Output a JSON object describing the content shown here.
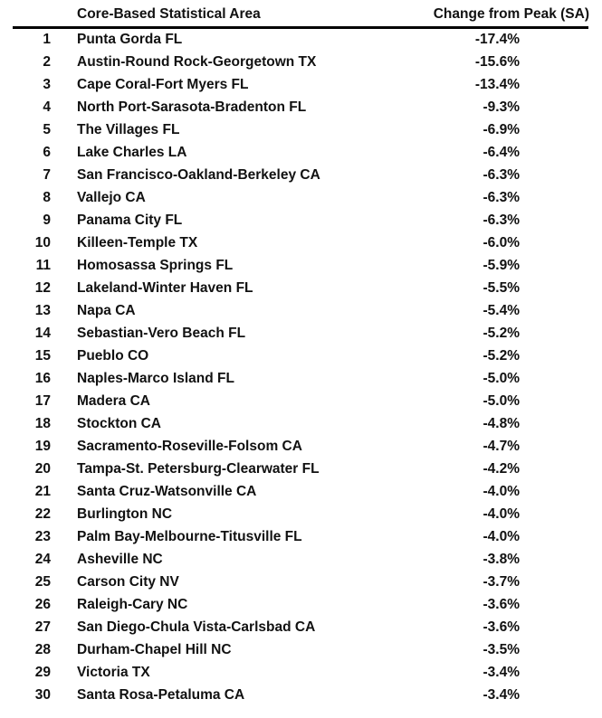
{
  "header": {
    "area": "Core-Based Statistical Area",
    "change": "Change from Peak (SA)"
  },
  "rows": [
    {
      "rank": "1",
      "name": "Punta Gorda FL",
      "change": "-17.4%"
    },
    {
      "rank": "2",
      "name": "Austin-Round Rock-Georgetown TX",
      "change": "-15.6%"
    },
    {
      "rank": "3",
      "name": "Cape Coral-Fort Myers FL",
      "change": "-13.4%"
    },
    {
      "rank": "4",
      "name": "North Port-Sarasota-Bradenton FL",
      "change": "-9.3%"
    },
    {
      "rank": "5",
      "name": "The Villages FL",
      "change": "-6.9%"
    },
    {
      "rank": "6",
      "name": "Lake Charles LA",
      "change": "-6.4%"
    },
    {
      "rank": "7",
      "name": "San Francisco-Oakland-Berkeley CA",
      "change": "-6.3%"
    },
    {
      "rank": "8",
      "name": "Vallejo CA",
      "change": "-6.3%"
    },
    {
      "rank": "9",
      "name": "Panama City FL",
      "change": "-6.3%"
    },
    {
      "rank": "10",
      "name": "Killeen-Temple TX",
      "change": "-6.0%"
    },
    {
      "rank": "11",
      "name": "Homosassa Springs FL",
      "change": "-5.9%"
    },
    {
      "rank": "12",
      "name": "Lakeland-Winter Haven FL",
      "change": "-5.5%"
    },
    {
      "rank": "13",
      "name": "Napa CA",
      "change": "-5.4%"
    },
    {
      "rank": "14",
      "name": "Sebastian-Vero Beach FL",
      "change": "-5.2%"
    },
    {
      "rank": "15",
      "name": "Pueblo CO",
      "change": "-5.2%"
    },
    {
      "rank": "16",
      "name": "Naples-Marco Island FL",
      "change": "-5.0%"
    },
    {
      "rank": "17",
      "name": "Madera CA",
      "change": "-5.0%"
    },
    {
      "rank": "18",
      "name": "Stockton CA",
      "change": "-4.8%"
    },
    {
      "rank": "19",
      "name": "Sacramento-Roseville-Folsom CA",
      "change": "-4.7%"
    },
    {
      "rank": "20",
      "name": "Tampa-St. Petersburg-Clearwater FL",
      "change": "-4.2%"
    },
    {
      "rank": "21",
      "name": "Santa Cruz-Watsonville CA",
      "change": "-4.0%"
    },
    {
      "rank": "22",
      "name": "Burlington NC",
      "change": "-4.0%"
    },
    {
      "rank": "23",
      "name": "Palm Bay-Melbourne-Titusville FL",
      "change": "-4.0%"
    },
    {
      "rank": "24",
      "name": "Asheville NC",
      "change": "-3.8%"
    },
    {
      "rank": "25",
      "name": "Carson City NV",
      "change": "-3.7%"
    },
    {
      "rank": "26",
      "name": "Raleigh-Cary NC",
      "change": "-3.6%"
    },
    {
      "rank": "27",
      "name": "San Diego-Chula Vista-Carlsbad CA",
      "change": "-3.6%"
    },
    {
      "rank": "28",
      "name": "Durham-Chapel Hill NC",
      "change": "-3.5%"
    },
    {
      "rank": "29",
      "name": "Victoria TX",
      "change": "-3.4%"
    },
    {
      "rank": "30",
      "name": "Santa Rosa-Petaluma CA",
      "change": "-3.4%"
    }
  ]
}
